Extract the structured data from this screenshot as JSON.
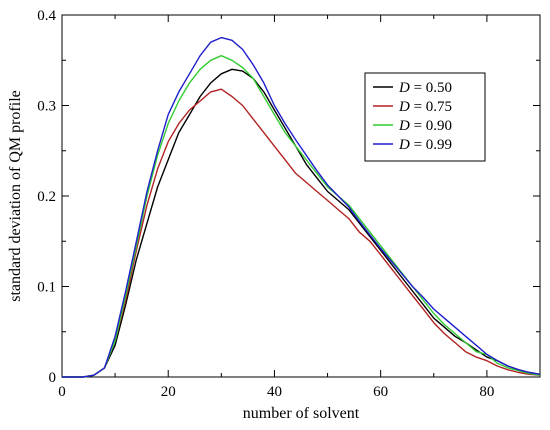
{
  "chart_data": {
    "type": "line",
    "title": "",
    "xlabel": "number of solvent",
    "ylabel": "standard deviation of QM profile",
    "xlim": [
      0,
      90
    ],
    "ylim": [
      0,
      0.4
    ],
    "xticks": [
      0,
      20,
      40,
      60,
      80
    ],
    "yticks": [
      0,
      0.1,
      0.2,
      0.3,
      0.4
    ],
    "xtick_labels": [
      "0",
      "20",
      "40",
      "60",
      "80"
    ],
    "ytick_labels": [
      "0",
      "0.1",
      "0.2",
      "0.3",
      "0.4"
    ],
    "grid": false,
    "legend_position": "top-right",
    "series": [
      {
        "name": "D = 0.50",
        "legend_var": "D",
        "legend_rest": " = 0.50",
        "color": "#000000",
        "points": [
          [
            0,
            0
          ],
          [
            4,
            0
          ],
          [
            6,
            0.002
          ],
          [
            8,
            0.01
          ],
          [
            10,
            0.035
          ],
          [
            12,
            0.08
          ],
          [
            14,
            0.13
          ],
          [
            16,
            0.17
          ],
          [
            18,
            0.21
          ],
          [
            20,
            0.24
          ],
          [
            22,
            0.27
          ],
          [
            24,
            0.29
          ],
          [
            26,
            0.31
          ],
          [
            28,
            0.325
          ],
          [
            30,
            0.335
          ],
          [
            32,
            0.34
          ],
          [
            34,
            0.338
          ],
          [
            36,
            0.33
          ],
          [
            38,
            0.315
          ],
          [
            40,
            0.295
          ],
          [
            42,
            0.275
          ],
          [
            44,
            0.255
          ],
          [
            46,
            0.235
          ],
          [
            48,
            0.22
          ],
          [
            50,
            0.205
          ],
          [
            52,
            0.195
          ],
          [
            54,
            0.185
          ],
          [
            56,
            0.17
          ],
          [
            58,
            0.155
          ],
          [
            60,
            0.14
          ],
          [
            62,
            0.125
          ],
          [
            64,
            0.11
          ],
          [
            66,
            0.095
          ],
          [
            68,
            0.08
          ],
          [
            70,
            0.065
          ],
          [
            72,
            0.055
          ],
          [
            74,
            0.045
          ],
          [
            76,
            0.038
          ],
          [
            78,
            0.03
          ],
          [
            80,
            0.022
          ],
          [
            82,
            0.018
          ],
          [
            84,
            0.012
          ],
          [
            86,
            0.008
          ],
          [
            88,
            0.005
          ],
          [
            90,
            0.003
          ]
        ]
      },
      {
        "name": "D = 0.75",
        "legend_var": "D",
        "legend_rest": " = 0.75",
        "color": "#b22222",
        "points": [
          [
            0,
            0
          ],
          [
            4,
            0
          ],
          [
            6,
            0.002
          ],
          [
            8,
            0.01
          ],
          [
            10,
            0.04
          ],
          [
            12,
            0.085
          ],
          [
            14,
            0.14
          ],
          [
            16,
            0.19
          ],
          [
            18,
            0.23
          ],
          [
            20,
            0.26
          ],
          [
            22,
            0.28
          ],
          [
            24,
            0.295
          ],
          [
            26,
            0.305
          ],
          [
            28,
            0.315
          ],
          [
            30,
            0.318
          ],
          [
            32,
            0.31
          ],
          [
            34,
            0.3
          ],
          [
            36,
            0.285
          ],
          [
            38,
            0.27
          ],
          [
            40,
            0.255
          ],
          [
            42,
            0.24
          ],
          [
            44,
            0.225
          ],
          [
            46,
            0.215
          ],
          [
            48,
            0.205
          ],
          [
            50,
            0.195
          ],
          [
            52,
            0.185
          ],
          [
            54,
            0.175
          ],
          [
            56,
            0.16
          ],
          [
            58,
            0.15
          ],
          [
            60,
            0.135
          ],
          [
            62,
            0.12
          ],
          [
            64,
            0.105
          ],
          [
            66,
            0.09
          ],
          [
            68,
            0.075
          ],
          [
            70,
            0.06
          ],
          [
            72,
            0.048
          ],
          [
            74,
            0.038
          ],
          [
            76,
            0.028
          ],
          [
            78,
            0.022
          ],
          [
            80,
            0.018
          ],
          [
            82,
            0.012
          ],
          [
            84,
            0.008
          ],
          [
            86,
            0.005
          ],
          [
            88,
            0.003
          ],
          [
            90,
            0.002
          ]
        ]
      },
      {
        "name": "D = 0.90",
        "legend_var": "D",
        "legend_rest": " = 0.90",
        "color": "#33cc33",
        "points": [
          [
            0,
            0
          ],
          [
            4,
            0
          ],
          [
            6,
            0.002
          ],
          [
            8,
            0.01
          ],
          [
            10,
            0.04
          ],
          [
            12,
            0.09
          ],
          [
            14,
            0.145
          ],
          [
            16,
            0.2
          ],
          [
            18,
            0.245
          ],
          [
            20,
            0.28
          ],
          [
            22,
            0.305
          ],
          [
            24,
            0.325
          ],
          [
            26,
            0.34
          ],
          [
            28,
            0.35
          ],
          [
            30,
            0.355
          ],
          [
            32,
            0.35
          ],
          [
            34,
            0.342
          ],
          [
            36,
            0.33
          ],
          [
            38,
            0.31
          ],
          [
            40,
            0.29
          ],
          [
            42,
            0.27
          ],
          [
            44,
            0.255
          ],
          [
            46,
            0.24
          ],
          [
            48,
            0.225
          ],
          [
            50,
            0.21
          ],
          [
            52,
            0.2
          ],
          [
            54,
            0.19
          ],
          [
            56,
            0.175
          ],
          [
            58,
            0.16
          ],
          [
            60,
            0.145
          ],
          [
            62,
            0.13
          ],
          [
            64,
            0.115
          ],
          [
            66,
            0.1
          ],
          [
            68,
            0.085
          ],
          [
            70,
            0.07
          ],
          [
            72,
            0.058
          ],
          [
            74,
            0.048
          ],
          [
            76,
            0.038
          ],
          [
            78,
            0.028
          ],
          [
            80,
            0.025
          ],
          [
            82,
            0.015
          ],
          [
            84,
            0.01
          ],
          [
            86,
            0.007
          ],
          [
            88,
            0.004
          ],
          [
            90,
            0.002
          ]
        ]
      },
      {
        "name": "D = 0.99",
        "legend_var": "D",
        "legend_rest": " = 0.99",
        "color": "#1f1fcc",
        "points": [
          [
            0,
            0
          ],
          [
            4,
            0
          ],
          [
            6,
            0.002
          ],
          [
            8,
            0.01
          ],
          [
            10,
            0.045
          ],
          [
            12,
            0.095
          ],
          [
            14,
            0.15
          ],
          [
            16,
            0.205
          ],
          [
            18,
            0.25
          ],
          [
            20,
            0.29
          ],
          [
            22,
            0.315
          ],
          [
            24,
            0.335
          ],
          [
            26,
            0.355
          ],
          [
            28,
            0.37
          ],
          [
            30,
            0.375
          ],
          [
            32,
            0.372
          ],
          [
            34,
            0.362
          ],
          [
            36,
            0.345
          ],
          [
            38,
            0.325
          ],
          [
            40,
            0.3
          ],
          [
            42,
            0.28
          ],
          [
            44,
            0.262
          ],
          [
            46,
            0.245
          ],
          [
            48,
            0.228
          ],
          [
            50,
            0.212
          ],
          [
            52,
            0.2
          ],
          [
            54,
            0.188
          ],
          [
            56,
            0.172
          ],
          [
            58,
            0.157
          ],
          [
            60,
            0.142
          ],
          [
            62,
            0.128
          ],
          [
            64,
            0.114
          ],
          [
            66,
            0.1
          ],
          [
            68,
            0.088
          ],
          [
            70,
            0.075
          ],
          [
            72,
            0.065
          ],
          [
            74,
            0.055
          ],
          [
            76,
            0.045
          ],
          [
            78,
            0.035
          ],
          [
            80,
            0.025
          ],
          [
            82,
            0.018
          ],
          [
            84,
            0.012
          ],
          [
            86,
            0.008
          ],
          [
            88,
            0.005
          ],
          [
            90,
            0.003
          ]
        ]
      }
    ]
  }
}
